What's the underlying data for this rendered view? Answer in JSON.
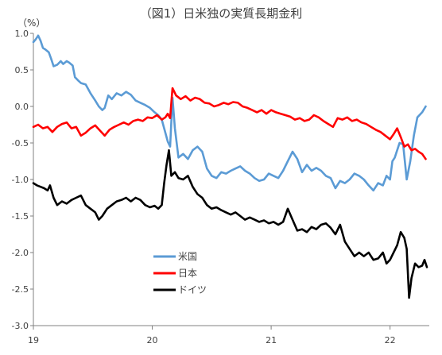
{
  "chart_data": {
    "type": "line",
    "title": "（図1）日米独の実質長期金利",
    "unit": "（%）",
    "x_tick_labels": [
      "19",
      "20",
      "21",
      "22"
    ],
    "x_tick_positions": [
      2019.0,
      2020.0,
      2021.0,
      2022.0
    ],
    "xlim": [
      2019.0,
      2022.33
    ],
    "y_tick_labels": [
      "1.0",
      "0.5",
      "0.0",
      "-0.5",
      "-1.0",
      "-1.5",
      "-2.0",
      "-2.5",
      "-3.0"
    ],
    "y_ticks": [
      1.0,
      0.5,
      0.0,
      -0.5,
      -1.0,
      -1.5,
      -2.0,
      -2.5,
      -3.0
    ],
    "ylim": [
      -3.0,
      1.0
    ],
    "grid": false,
    "legend_position": "bottom-center",
    "series": [
      {
        "name": "米国",
        "color": "#5b9bd5",
        "points": [
          [
            2019.0,
            0.88
          ],
          [
            2019.02,
            0.92
          ],
          [
            2019.04,
            0.97
          ],
          [
            2019.06,
            0.9
          ],
          [
            2019.08,
            0.8
          ],
          [
            2019.1,
            0.78
          ],
          [
            2019.13,
            0.74
          ],
          [
            2019.15,
            0.65
          ],
          [
            2019.17,
            0.55
          ],
          [
            2019.2,
            0.57
          ],
          [
            2019.23,
            0.62
          ],
          [
            2019.25,
            0.58
          ],
          [
            2019.28,
            0.62
          ],
          [
            2019.3,
            0.6
          ],
          [
            2019.33,
            0.56
          ],
          [
            2019.35,
            0.4
          ],
          [
            2019.38,
            0.35
          ],
          [
            2019.4,
            0.32
          ],
          [
            2019.44,
            0.3
          ],
          [
            2019.48,
            0.18
          ],
          [
            2019.52,
            0.08
          ],
          [
            2019.55,
            0.0
          ],
          [
            2019.58,
            -0.05
          ],
          [
            2019.6,
            -0.02
          ],
          [
            2019.63,
            0.15
          ],
          [
            2019.66,
            0.1
          ],
          [
            2019.7,
            0.18
          ],
          [
            2019.74,
            0.15
          ],
          [
            2019.78,
            0.2
          ],
          [
            2019.82,
            0.16
          ],
          [
            2019.86,
            0.08
          ],
          [
            2019.9,
            0.05
          ],
          [
            2019.94,
            0.02
          ],
          [
            2019.98,
            -0.02
          ],
          [
            2020.02,
            -0.08
          ],
          [
            2020.05,
            -0.12
          ],
          [
            2020.08,
            -0.18
          ],
          [
            2020.11,
            -0.36
          ],
          [
            2020.13,
            -0.48
          ],
          [
            2020.15,
            -0.55
          ],
          [
            2020.17,
            0.12
          ],
          [
            2020.19,
            -0.3
          ],
          [
            2020.22,
            -0.7
          ],
          [
            2020.26,
            -0.65
          ],
          [
            2020.3,
            -0.72
          ],
          [
            2020.34,
            -0.6
          ],
          [
            2020.38,
            -0.55
          ],
          [
            2020.42,
            -0.62
          ],
          [
            2020.46,
            -0.85
          ],
          [
            2020.5,
            -0.95
          ],
          [
            2020.54,
            -0.98
          ],
          [
            2020.58,
            -0.9
          ],
          [
            2020.62,
            -0.92
          ],
          [
            2020.66,
            -0.88
          ],
          [
            2020.7,
            -0.85
          ],
          [
            2020.74,
            -0.82
          ],
          [
            2020.78,
            -0.88
          ],
          [
            2020.82,
            -0.92
          ],
          [
            2020.86,
            -0.98
          ],
          [
            2020.9,
            -1.02
          ],
          [
            2020.94,
            -1.0
          ],
          [
            2020.98,
            -0.92
          ],
          [
            2021.02,
            -0.95
          ],
          [
            2021.06,
            -0.98
          ],
          [
            2021.1,
            -0.88
          ],
          [
            2021.14,
            -0.75
          ],
          [
            2021.18,
            -0.62
          ],
          [
            2021.22,
            -0.72
          ],
          [
            2021.26,
            -0.9
          ],
          [
            2021.3,
            -0.8
          ],
          [
            2021.34,
            -0.88
          ],
          [
            2021.38,
            -0.84
          ],
          [
            2021.42,
            -0.88
          ],
          [
            2021.46,
            -0.95
          ],
          [
            2021.5,
            -0.98
          ],
          [
            2021.52,
            -1.05
          ],
          [
            2021.54,
            -1.12
          ],
          [
            2021.58,
            -1.02
          ],
          [
            2021.62,
            -1.05
          ],
          [
            2021.66,
            -1.0
          ],
          [
            2021.7,
            -0.92
          ],
          [
            2021.74,
            -0.95
          ],
          [
            2021.78,
            -1.0
          ],
          [
            2021.82,
            -1.08
          ],
          [
            2021.86,
            -1.15
          ],
          [
            2021.9,
            -1.05
          ],
          [
            2021.94,
            -1.08
          ],
          [
            2021.97,
            -0.95
          ],
          [
            2022.0,
            -1.0
          ],
          [
            2022.02,
            -0.75
          ],
          [
            2022.04,
            -0.7
          ],
          [
            2022.06,
            -0.6
          ],
          [
            2022.08,
            -0.5
          ],
          [
            2022.11,
            -0.52
          ],
          [
            2022.14,
            -1.0
          ],
          [
            2022.17,
            -0.75
          ],
          [
            2022.2,
            -0.4
          ],
          [
            2022.23,
            -0.15
          ],
          [
            2022.27,
            -0.08
          ],
          [
            2022.3,
            0.0
          ]
        ]
      },
      {
        "name": "日本",
        "color": "#ff0000",
        "points": [
          [
            2019.0,
            -0.28
          ],
          [
            2019.04,
            -0.25
          ],
          [
            2019.08,
            -0.3
          ],
          [
            2019.12,
            -0.28
          ],
          [
            2019.16,
            -0.35
          ],
          [
            2019.2,
            -0.28
          ],
          [
            2019.24,
            -0.24
          ],
          [
            2019.28,
            -0.22
          ],
          [
            2019.32,
            -0.3
          ],
          [
            2019.36,
            -0.28
          ],
          [
            2019.4,
            -0.4
          ],
          [
            2019.44,
            -0.36
          ],
          [
            2019.48,
            -0.3
          ],
          [
            2019.52,
            -0.26
          ],
          [
            2019.56,
            -0.33
          ],
          [
            2019.6,
            -0.4
          ],
          [
            2019.64,
            -0.32
          ],
          [
            2019.68,
            -0.28
          ],
          [
            2019.72,
            -0.25
          ],
          [
            2019.76,
            -0.22
          ],
          [
            2019.8,
            -0.25
          ],
          [
            2019.84,
            -0.2
          ],
          [
            2019.88,
            -0.18
          ],
          [
            2019.92,
            -0.2
          ],
          [
            2019.96,
            -0.15
          ],
          [
            2020.0,
            -0.16
          ],
          [
            2020.04,
            -0.12
          ],
          [
            2020.08,
            -0.18
          ],
          [
            2020.11,
            -0.15
          ],
          [
            2020.13,
            -0.1
          ],
          [
            2020.15,
            -0.16
          ],
          [
            2020.17,
            0.25
          ],
          [
            2020.2,
            0.15
          ],
          [
            2020.24,
            0.1
          ],
          [
            2020.28,
            0.14
          ],
          [
            2020.32,
            0.08
          ],
          [
            2020.36,
            0.12
          ],
          [
            2020.4,
            0.1
          ],
          [
            2020.44,
            0.05
          ],
          [
            2020.48,
            0.04
          ],
          [
            2020.52,
            0.0
          ],
          [
            2020.56,
            0.02
          ],
          [
            2020.6,
            0.05
          ],
          [
            2020.64,
            0.03
          ],
          [
            2020.68,
            0.06
          ],
          [
            2020.72,
            0.05
          ],
          [
            2020.76,
            0.0
          ],
          [
            2020.8,
            -0.02
          ],
          [
            2020.84,
            -0.05
          ],
          [
            2020.88,
            -0.08
          ],
          [
            2020.92,
            -0.05
          ],
          [
            2020.96,
            -0.1
          ],
          [
            2021.0,
            -0.05
          ],
          [
            2021.04,
            -0.08
          ],
          [
            2021.08,
            -0.1
          ],
          [
            2021.12,
            -0.12
          ],
          [
            2021.16,
            -0.14
          ],
          [
            2021.2,
            -0.18
          ],
          [
            2021.24,
            -0.16
          ],
          [
            2021.28,
            -0.2
          ],
          [
            2021.32,
            -0.18
          ],
          [
            2021.36,
            -0.12
          ],
          [
            2021.4,
            -0.15
          ],
          [
            2021.44,
            -0.2
          ],
          [
            2021.48,
            -0.24
          ],
          [
            2021.52,
            -0.28
          ],
          [
            2021.56,
            -0.16
          ],
          [
            2021.6,
            -0.18
          ],
          [
            2021.64,
            -0.15
          ],
          [
            2021.68,
            -0.2
          ],
          [
            2021.72,
            -0.18
          ],
          [
            2021.76,
            -0.22
          ],
          [
            2021.8,
            -0.24
          ],
          [
            2021.84,
            -0.28
          ],
          [
            2021.88,
            -0.32
          ],
          [
            2021.92,
            -0.35
          ],
          [
            2021.96,
            -0.4
          ],
          [
            2022.0,
            -0.45
          ],
          [
            2022.03,
            -0.38
          ],
          [
            2022.06,
            -0.3
          ],
          [
            2022.09,
            -0.42
          ],
          [
            2022.12,
            -0.55
          ],
          [
            2022.15,
            -0.52
          ],
          [
            2022.18,
            -0.6
          ],
          [
            2022.21,
            -0.58
          ],
          [
            2022.24,
            -0.62
          ],
          [
            2022.27,
            -0.65
          ],
          [
            2022.3,
            -0.72
          ]
        ]
      },
      {
        "name": "ドイツ",
        "color": "#000000",
        "points": [
          [
            2019.0,
            -1.05
          ],
          [
            2019.03,
            -1.08
          ],
          [
            2019.06,
            -1.1
          ],
          [
            2019.09,
            -1.12
          ],
          [
            2019.12,
            -1.15
          ],
          [
            2019.14,
            -1.08
          ],
          [
            2019.17,
            -1.25
          ],
          [
            2019.2,
            -1.35
          ],
          [
            2019.24,
            -1.3
          ],
          [
            2019.28,
            -1.33
          ],
          [
            2019.32,
            -1.28
          ],
          [
            2019.36,
            -1.25
          ],
          [
            2019.4,
            -1.22
          ],
          [
            2019.44,
            -1.35
          ],
          [
            2019.48,
            -1.4
          ],
          [
            2019.52,
            -1.45
          ],
          [
            2019.55,
            -1.55
          ],
          [
            2019.58,
            -1.5
          ],
          [
            2019.62,
            -1.4
          ],
          [
            2019.66,
            -1.35
          ],
          [
            2019.7,
            -1.3
          ],
          [
            2019.74,
            -1.28
          ],
          [
            2019.78,
            -1.25
          ],
          [
            2019.82,
            -1.3
          ],
          [
            2019.86,
            -1.25
          ],
          [
            2019.9,
            -1.28
          ],
          [
            2019.94,
            -1.35
          ],
          [
            2019.98,
            -1.38
          ],
          [
            2020.02,
            -1.36
          ],
          [
            2020.05,
            -1.4
          ],
          [
            2020.08,
            -1.35
          ],
          [
            2020.1,
            -1.05
          ],
          [
            2020.12,
            -0.8
          ],
          [
            2020.14,
            -0.6
          ],
          [
            2020.16,
            -0.95
          ],
          [
            2020.19,
            -0.9
          ],
          [
            2020.22,
            -0.98
          ],
          [
            2020.26,
            -1.0
          ],
          [
            2020.3,
            -0.95
          ],
          [
            2020.34,
            -1.1
          ],
          [
            2020.38,
            -1.2
          ],
          [
            2020.42,
            -1.25
          ],
          [
            2020.46,
            -1.35
          ],
          [
            2020.5,
            -1.4
          ],
          [
            2020.54,
            -1.38
          ],
          [
            2020.58,
            -1.42
          ],
          [
            2020.62,
            -1.45
          ],
          [
            2020.66,
            -1.48
          ],
          [
            2020.7,
            -1.45
          ],
          [
            2020.74,
            -1.5
          ],
          [
            2020.78,
            -1.55
          ],
          [
            2020.82,
            -1.52
          ],
          [
            2020.86,
            -1.55
          ],
          [
            2020.9,
            -1.58
          ],
          [
            2020.94,
            -1.56
          ],
          [
            2020.98,
            -1.6
          ],
          [
            2021.02,
            -1.58
          ],
          [
            2021.06,
            -1.62
          ],
          [
            2021.1,
            -1.58
          ],
          [
            2021.14,
            -1.4
          ],
          [
            2021.18,
            -1.55
          ],
          [
            2021.22,
            -1.7
          ],
          [
            2021.26,
            -1.68
          ],
          [
            2021.3,
            -1.72
          ],
          [
            2021.34,
            -1.65
          ],
          [
            2021.38,
            -1.68
          ],
          [
            2021.42,
            -1.62
          ],
          [
            2021.46,
            -1.6
          ],
          [
            2021.5,
            -1.66
          ],
          [
            2021.54,
            -1.75
          ],
          [
            2021.58,
            -1.62
          ],
          [
            2021.62,
            -1.85
          ],
          [
            2021.66,
            -1.95
          ],
          [
            2021.7,
            -2.05
          ],
          [
            2021.74,
            -2.0
          ],
          [
            2021.78,
            -2.05
          ],
          [
            2021.82,
            -2.0
          ],
          [
            2021.86,
            -2.1
          ],
          [
            2021.9,
            -2.08
          ],
          [
            2021.94,
            -2.0
          ],
          [
            2021.97,
            -2.15
          ],
          [
            2022.0,
            -2.1
          ],
          [
            2022.03,
            -2.0
          ],
          [
            2022.06,
            -1.9
          ],
          [
            2022.09,
            -1.72
          ],
          [
            2022.12,
            -1.8
          ],
          [
            2022.14,
            -1.95
          ],
          [
            2022.16,
            -2.62
          ],
          [
            2022.18,
            -2.35
          ],
          [
            2022.21,
            -2.15
          ],
          [
            2022.24,
            -2.2
          ],
          [
            2022.27,
            -2.18
          ],
          [
            2022.29,
            -2.1
          ],
          [
            2022.31,
            -2.2
          ]
        ]
      }
    ]
  }
}
